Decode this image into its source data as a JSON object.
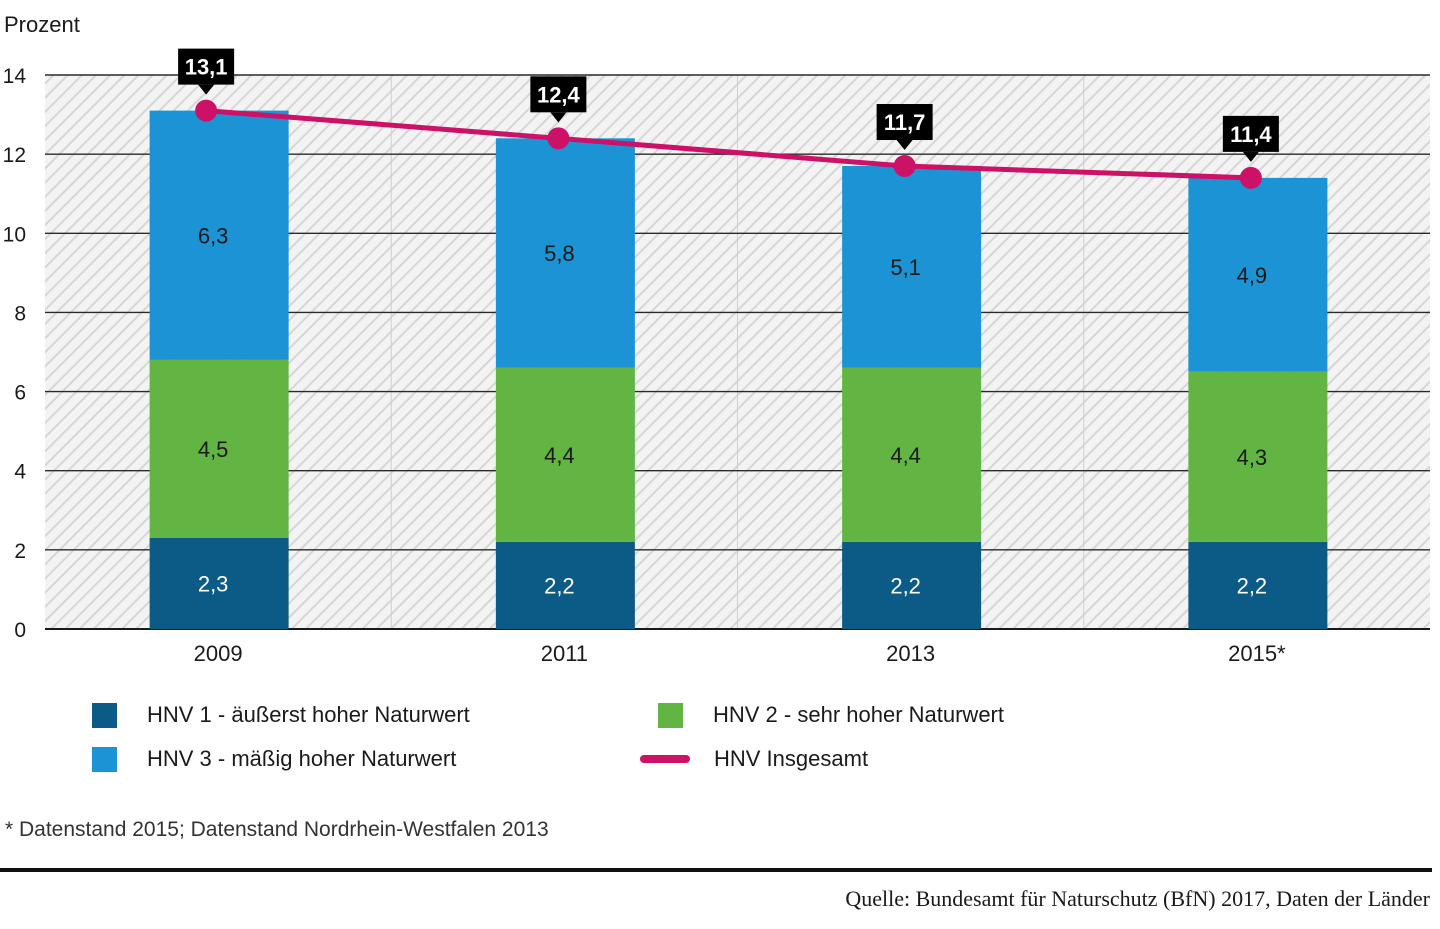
{
  "chart_data": {
    "type": "bar",
    "stacked": true,
    "ylabel": "Prozent",
    "ylim": [
      0,
      14
    ],
    "yticks": [
      0,
      2,
      4,
      6,
      8,
      10,
      12,
      14
    ],
    "categories": [
      "2009",
      "2011",
      "2013",
      "2015*"
    ],
    "series": [
      {
        "name": "HNV 1 - äußerst hoher Naturwert",
        "values": [
          2.3,
          2.2,
          2.2,
          2.2
        ],
        "labels": [
          "2,3",
          "2,2",
          "2,2",
          "2,2"
        ],
        "color": "#0c5a86"
      },
      {
        "name": "HNV 2 - sehr hoher Naturwert",
        "values": [
          4.5,
          4.4,
          4.4,
          4.3
        ],
        "labels": [
          "4,5",
          "4,4",
          "4,4",
          "4,3"
        ],
        "color": "#62b543"
      },
      {
        "name": "HNV 3 - mäßig hoher Naturwert",
        "values": [
          6.3,
          5.8,
          5.1,
          4.9
        ],
        "labels": [
          "6,3",
          "5,8",
          "5,1",
          "4,9"
        ],
        "color": "#1b93d5"
      }
    ],
    "line": {
      "name": "HNV Insgesamt",
      "values": [
        13.1,
        12.4,
        11.7,
        11.4
      ],
      "labels": [
        "13,1",
        "12,4",
        "11,7",
        "11,4"
      ],
      "color": "#cc1166"
    },
    "grid": true,
    "legend_position": "bottom"
  },
  "footnote": "* Datenstand 2015; Datenstand Nordrhein-Westfalen 2013",
  "source": "Quelle: Bundesamt für Naturschutz (BfN) 2017, Daten der Länder"
}
